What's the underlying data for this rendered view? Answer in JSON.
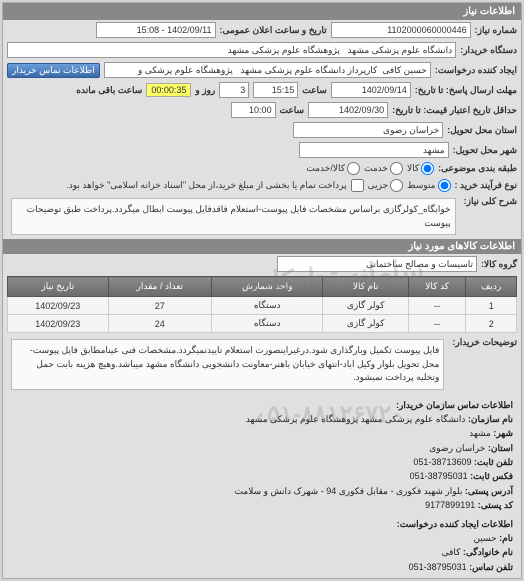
{
  "header": {
    "title": "اطلاعات نیاز"
  },
  "fields": {
    "req_no_label": "شماره نیاز:",
    "req_no": "1102000060000446",
    "ann_date_label": "تاریخ و ساعت اعلان عمومی:",
    "ann_date": "1402/09/11 - 15:08",
    "buyer_label": "دستگاه خریدار:",
    "buyer": "دانشگاه علوم پزشکی مشهد   پژوهشگاه علوم پزشکی مشهد",
    "creator_label": "ایجاد کننده درخواست:",
    "creator": "حسین کافی  کارپرداز دانشگاه علوم پزشکی مشهد   پژوهشگاه علوم پزشکی و",
    "contact_btn": "اطلاعات تماس خریدار",
    "resp_deadline_label": "مهلت ارسال پاسخ: تا تاریخ:",
    "resp_date": "1402/09/14",
    "resp_time_label": "ساعت",
    "resp_time": "15:15",
    "days_label": "روز و",
    "days": "3",
    "remain_time": "00:00:35",
    "remain_label": "ساعت باقی مانده",
    "valid_label": "حداقل تاریخ اعتبار قیمت: تا تاریخ:",
    "valid_date": "1402/09/30",
    "valid_time_label": "ساعت",
    "valid_time": "10:00",
    "province_label": "استان محل تحویل:",
    "province": "خراسان رضوی",
    "city_label": "شهر محل تحویل:",
    "city": "مشهد",
    "budget_label": "طبقه بندی موضوعی:",
    "budget_opt1": "کالا",
    "budget_opt2": "خدمت",
    "budget_opt3": "کالا/خدمت",
    "confirm_label": "نوع فرآیند خرید :",
    "confirm_opt1": "متوسط",
    "confirm_opt2": "جزیی",
    "confirm_note": "پرداخت تمام یا بخشی از مبلغ خرید،از محل \"اسناد خزانه اسلامی\" خواهد بود.",
    "keywords_label": "شرح کلی نیاز:",
    "keywords": "خوابگاه_کولرگازی براساس مشخصات فایل پیوست-استعلام فاقدفایل پیوست ابطال میگردد.پرداخت طبق توضیحات پیوست"
  },
  "goods_section": "اطلاعات کالاهای مورد نیاز",
  "group_label": "گروه کالا:",
  "group": "تاسیسات و مصالح ساختمانی",
  "table": {
    "headers": [
      "ردیف",
      "کد کالا",
      "نام کالا",
      "واحد شمارش",
      "تعداد / مقدار",
      "تاریخ نیاز"
    ],
    "rows": [
      [
        "1",
        "--",
        "کولر گازی",
        "دستگاه",
        "27",
        "1402/09/23"
      ],
      [
        "2",
        "--",
        "کولر گازی",
        "دستگاه",
        "24",
        "1402/09/23"
      ]
    ]
  },
  "desc_label": "توضیحات خریدار:",
  "desc": "فایل پیوست تکمیل وبارگذاری شود.درغیراینصورت استعلام تاییدنمیگردد.مشخصات فنی عینامطابق فایل پیوست-محل تحویل بلوار وکیل اباد-انتهای خیابان باهنر-معاونت دانشجویی دانشگاه مشهد میباشد.وهیچ هزینه بابت حمل وتخلیه پرداخت نمیشود.",
  "org_section": "اطلاعات تماس سازمان خریدار:",
  "org": {
    "name_lbl": "نام سازمان:",
    "name": "دانشگاه علوم پزشکی مشهد پژوهشگاه علوم پزشکی مشهد",
    "city_lbl": "شهر:",
    "city": "مشهد",
    "prov_lbl": "استان:",
    "prov": "خراسان رضوی",
    "tel_lbl": "تلفن ثابت:",
    "tel": "38713609-051",
    "fax_lbl": "فکس ثابت:",
    "fax": "38795031-051",
    "addr_lbl": "آدرس پستی:",
    "addr": "بلوار شهید فکوری - مقابل فکوری 94 - شهرک دانش و سلامت",
    "post_lbl": "کد پستی:",
    "post": "9177899191"
  },
  "creator_section": "اطلاعات ایجاد کننده درخواست:",
  "creator_info": {
    "fname_lbl": "نام:",
    "fname": "حسین",
    "lname_lbl": "نام خانوادگی:",
    "lname": "کافی",
    "tel_lbl": "تلفن تماس:",
    "tel": "38795031-051"
  },
  "watermark1": "سامانه تدارکات",
  "watermark2": "۰۵۱-۸۸۱۲۶۷۲۰"
}
